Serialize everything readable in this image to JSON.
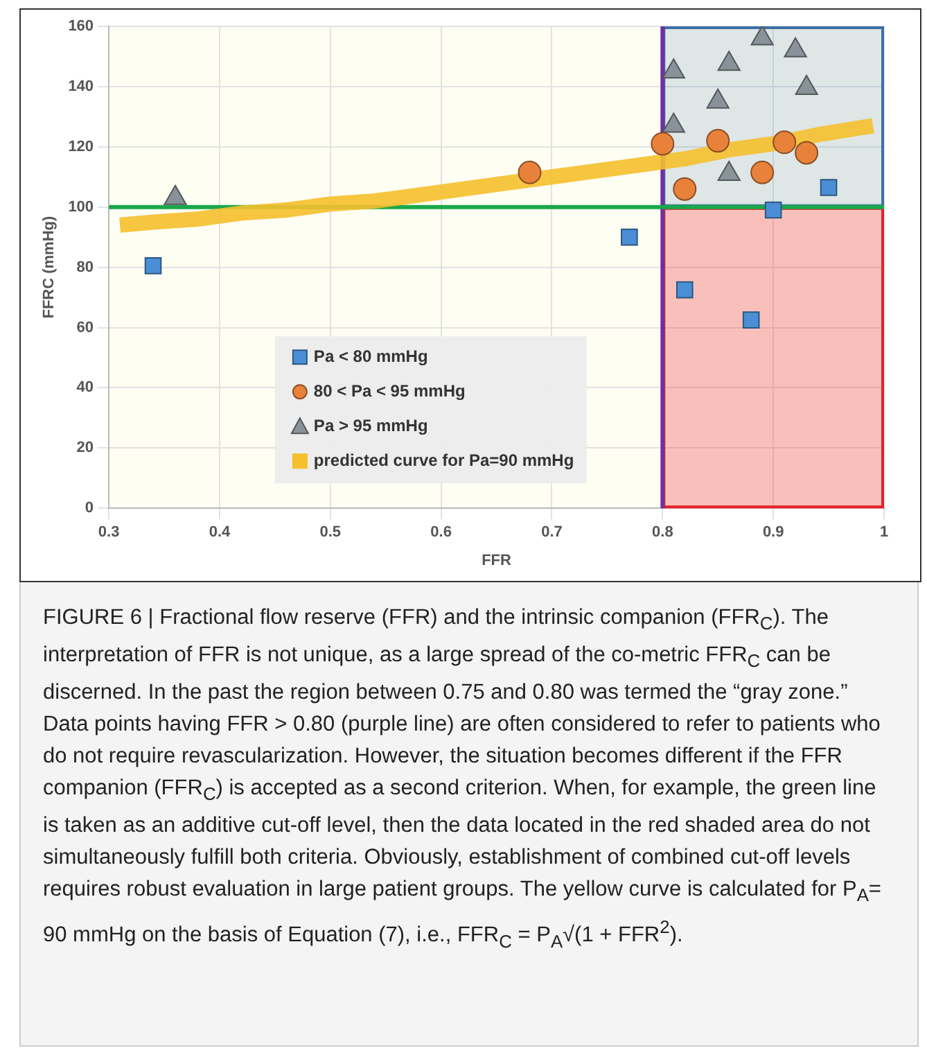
{
  "chart_data": {
    "type": "scatter",
    "xlabel": "FFR",
    "ylabel": "FFRC (mmHg)",
    "xlim": [
      0.3,
      1
    ],
    "xticks": [
      0.3,
      0.4,
      0.5,
      0.6,
      0.7,
      0.8,
      0.9,
      1
    ],
    "ylim": [
      0,
      160
    ],
    "yticks": [
      0,
      20,
      40,
      60,
      80,
      100,
      120,
      140,
      160
    ],
    "grid": true,
    "legend": "bottom",
    "series": [
      {
        "name": "Pa < 80 mmHg",
        "color": "#4a8fd6",
        "marker": "square",
        "x": [
          0.34,
          0.77,
          0.9,
          0.95,
          0.82,
          0.88
        ],
        "values": [
          80.5,
          90,
          99,
          106.5,
          72.5,
          62.5
        ]
      },
      {
        "name": "80 < Pa < 95 mmHg",
        "color": "#e8823a",
        "marker": "circle",
        "x": [
          0.68,
          0.8,
          0.82,
          0.85,
          0.89,
          0.91,
          0.93
        ],
        "values": [
          111.5,
          121,
          106,
          122,
          111.5,
          121.5,
          118
        ]
      },
      {
        "name": "Pa > 95 mmHg",
        "color": "#8a9299",
        "marker": "triangle",
        "x": [
          0.36,
          0.81,
          0.81,
          0.85,
          0.86,
          0.86,
          0.89,
          0.92,
          0.93
        ],
        "values": [
          103,
          145,
          127,
          135,
          147.5,
          111,
          156,
          152,
          139.5
        ]
      },
      {
        "name": "predicted curve for Pa=90 mmHg",
        "color": "#f5c02c",
        "type": "line",
        "marker": "none",
        "x": [
          0.31,
          0.34,
          0.38,
          0.42,
          0.46,
          0.5,
          0.54,
          0.58,
          0.62,
          0.66,
          0.7,
          0.74,
          0.78,
          0.82,
          0.86,
          0.9,
          0.94,
          0.99
        ],
        "values": [
          94,
          95,
          96,
          98,
          99,
          101,
          102,
          104,
          106,
          108,
          110,
          112,
          114,
          116,
          119,
          121,
          124,
          127
        ]
      }
    ],
    "ref_lines": [
      {
        "axis": "x",
        "value": 0.8,
        "color": "#7030a0"
      },
      {
        "axis": "y",
        "value": 100,
        "color": "#1aa84a"
      }
    ],
    "bands": [
      {
        "axis": "y",
        "from": 100,
        "to": 160,
        "color": "#3f6fa8"
      },
      {
        "axis": "y",
        "from": 0,
        "to": 100,
        "color": "#e8202a"
      }
    ],
    "annotations": [
      "FIGURE 6 | Fractional flow reserve (FFR) and the intrinsic companion (FFR$_{C}$). The interpretation of FFR is not unique, as a large spread of the co-metric FFR$_{C}$ can be discerned. In the past the region between 0.75 and 0.80 was termed the “gray zone.” Data points having FFR > 0.80 (purple line) are often considered to refer to patients who do not require revascularization. However, the situation becomes different if the FFR companion (FFR$_{C}$) is accepted as a second criterion. When, for example, the green line is taken as an additive cut-off level, then the data located in the red shaded area do not simultaneously fulfill both criteria. Obviously, establishment of combined cut-off levels requires robust evaluation in large patient groups. The yellow curve is calculated for P$_{A}$= 90 mmHg on the basis of Equation (7), i.e., FFR$_{C}$ = P$_{A}$√(1 + FFR$^{2}$)."
    ]
  }
}
